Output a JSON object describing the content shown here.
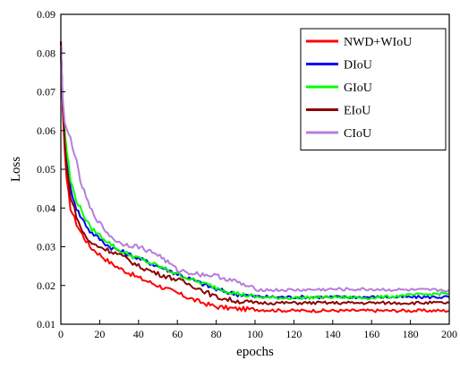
{
  "chart_data": {
    "type": "line",
    "title": "",
    "xlabel": "epochs",
    "ylabel": "Loss",
    "xlim": [
      0,
      200
    ],
    "ylim": [
      0.01,
      0.09
    ],
    "xticks": [
      0,
      20,
      40,
      60,
      80,
      100,
      120,
      140,
      160,
      180,
      200
    ],
    "yticks": [
      0.01,
      0.02,
      0.03,
      0.04,
      0.05,
      0.06,
      0.07,
      0.08,
      0.09
    ],
    "xtick_labels": [
      "0",
      "20",
      "40",
      "60",
      "80",
      "100",
      "120",
      "140",
      "160",
      "180",
      "200"
    ],
    "ytick_labels": [
      "0.01",
      "0.02",
      "0.03",
      "0.04",
      "0.05",
      "0.06",
      "0.07",
      "0.08",
      "0.09"
    ],
    "grid": false,
    "legend_position": "top-right",
    "series": [
      {
        "name": "NWD+WIoU",
        "color": "#ff0000",
        "x": [
          0,
          1,
          2,
          3,
          5,
          8,
          10,
          15,
          20,
          25,
          30,
          40,
          50,
          60,
          70,
          80,
          90,
          100,
          110,
          120,
          140,
          160,
          180,
          200
        ],
        "y": [
          0.083,
          0.065,
          0.055,
          0.047,
          0.04,
          0.036,
          0.034,
          0.03,
          0.028,
          0.026,
          0.0245,
          0.022,
          0.02,
          0.018,
          0.016,
          0.0145,
          0.014,
          0.0138,
          0.0136,
          0.0135,
          0.0135,
          0.0135,
          0.0135,
          0.0135
        ]
      },
      {
        "name": "DIoU",
        "color": "#0000ff",
        "x": [
          0,
          1,
          2,
          3,
          5,
          8,
          10,
          15,
          20,
          25,
          30,
          40,
          50,
          60,
          70,
          80,
          90,
          100,
          110,
          120,
          140,
          160,
          180,
          200
        ],
        "y": [
          0.08,
          0.066,
          0.058,
          0.052,
          0.045,
          0.04,
          0.038,
          0.034,
          0.032,
          0.03,
          0.029,
          0.027,
          0.025,
          0.023,
          0.021,
          0.019,
          0.0178,
          0.0172,
          0.017,
          0.017,
          0.017,
          0.017,
          0.017,
          0.017
        ]
      },
      {
        "name": "GIoU",
        "color": "#00ff00",
        "x": [
          0,
          1,
          2,
          3,
          5,
          8,
          10,
          15,
          20,
          25,
          30,
          40,
          50,
          60,
          70,
          80,
          90,
          100,
          110,
          120,
          140,
          160,
          180,
          200
        ],
        "y": [
          0.08,
          0.067,
          0.06,
          0.055,
          0.047,
          0.042,
          0.04,
          0.035,
          0.033,
          0.031,
          0.029,
          0.027,
          0.025,
          0.023,
          0.021,
          0.0195,
          0.018,
          0.017,
          0.0168,
          0.0168,
          0.017,
          0.0168,
          0.0175,
          0.018
        ]
      },
      {
        "name": "EIoU",
        "color": "#8b0000",
        "x": [
          0,
          1,
          2,
          3,
          5,
          8,
          10,
          15,
          20,
          25,
          30,
          40,
          50,
          60,
          70,
          80,
          90,
          100,
          110,
          120,
          140,
          160,
          180,
          200
        ],
        "y": [
          0.083,
          0.066,
          0.057,
          0.05,
          0.043,
          0.038,
          0.035,
          0.031,
          0.03,
          0.029,
          0.028,
          0.025,
          0.023,
          0.0215,
          0.0195,
          0.017,
          0.016,
          0.0155,
          0.0155,
          0.0155,
          0.0155,
          0.0155,
          0.0155,
          0.0155
        ]
      },
      {
        "name": "CIoU",
        "color": "#b57edc",
        "x": [
          0,
          1,
          2,
          3,
          5,
          8,
          10,
          15,
          20,
          25,
          30,
          40,
          50,
          60,
          70,
          80,
          90,
          100,
          110,
          120,
          140,
          160,
          180,
          200
        ],
        "y": [
          0.082,
          0.068,
          0.062,
          0.06,
          0.058,
          0.052,
          0.047,
          0.04,
          0.036,
          0.033,
          0.031,
          0.03,
          0.028,
          0.024,
          0.023,
          0.0225,
          0.021,
          0.019,
          0.0188,
          0.0188,
          0.019,
          0.019,
          0.0188,
          0.0188
        ]
      }
    ]
  }
}
